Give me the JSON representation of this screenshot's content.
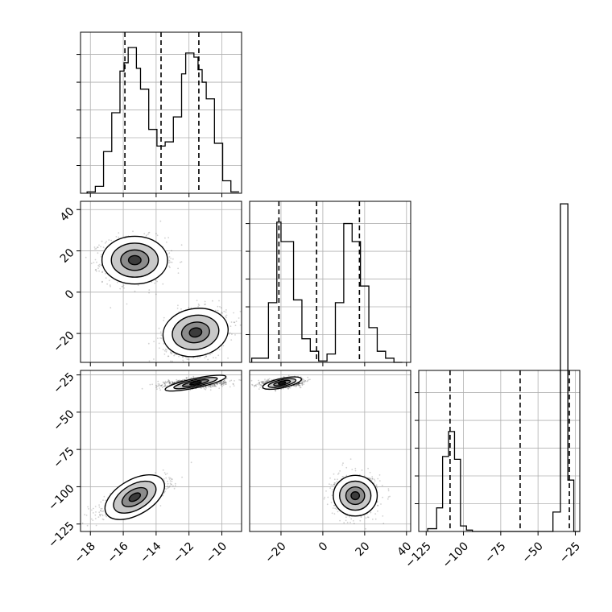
{
  "chart_data": {
    "type": "corner",
    "params": [
      {
        "index": 0,
        "xlim": [
          -18.6,
          -8.8
        ],
        "ticks": [
          -18,
          -16,
          -14,
          -12,
          -10
        ],
        "tick_labels": [
          "−18",
          "−16",
          "−14",
          "−12",
          "−10"
        ],
        "quantiles": [
          -15.9,
          -13.7,
          -11.4
        ],
        "hist_bins": [
          -18.2,
          -17.7,
          -17.2,
          -16.7,
          -16.2,
          -15.95,
          -15.7,
          -15.45,
          -15.2,
          -14.95,
          -14.45,
          -13.95,
          -13.45,
          -12.95,
          -12.45,
          -12.2,
          -11.95,
          -11.7,
          -11.45,
          -11.2,
          -10.95,
          -10.45,
          -9.95,
          -9.45
        ],
        "hist_counts": [
          5,
          25,
          150,
          290,
          440,
          470,
          525,
          525,
          450,
          375,
          230,
          170,
          185,
          275,
          430,
          505,
          505,
          490,
          445,
          400,
          340,
          180,
          45,
          5
        ]
      },
      {
        "index": 1,
        "xlim": [
          -35,
          42
        ],
        "ticks": [
          -20,
          0,
          20,
          40
        ],
        "tick_labels": [
          "−20",
          "0",
          "20",
          "40"
        ],
        "quantiles": [
          -21,
          -3,
          17.5
        ],
        "hist_bins": [
          -34,
          -30,
          -26,
          -22,
          -20,
          -18,
          -14,
          -10,
          -6,
          -2,
          2,
          6,
          10,
          14,
          18,
          22,
          26,
          30,
          34
        ],
        "hist_counts": [
          15,
          15,
          215,
          505,
          435,
          435,
          225,
          85,
          40,
          5,
          30,
          215,
          500,
          435,
          275,
          125,
          40,
          15,
          0
        ]
      },
      {
        "index": 2,
        "xlim": [
          -130,
          -22
        ],
        "ticks": [
          -125,
          -100,
          -75,
          -50,
          -25
        ],
        "tick_labels": [
          "−125",
          "−100",
          "−75",
          "−50",
          "−25"
        ],
        "quantiles": [
          -109,
          -62,
          -29
        ],
        "hist_bins": [
          -124,
          -118,
          -114,
          -110,
          -106,
          -102,
          -98,
          -94,
          -40,
          -35,
          -30,
          -26
        ],
        "hist_counts": [
          10,
          85,
          270,
          360,
          260,
          20,
          5,
          0,
          70,
          1180,
          185,
          0
        ]
      }
    ],
    "left_axis_ticks": {
      "row1": {
        "ticks": [
          40,
          20,
          0,
          -20
        ],
        "tick_labels": [
          "40",
          "20",
          "0",
          "−20"
        ],
        "ylim": [
          -34,
          44
        ]
      },
      "row2": {
        "ticks": [
          -25,
          -50,
          -75,
          -100,
          -125
        ],
        "tick_labels": [
          "−25",
          "−50",
          "−75",
          "−100",
          "−125"
        ],
        "ylim": [
          -130,
          -22
        ]
      }
    },
    "hist_ylim": [
      0,
      580
    ],
    "scatter_blobs": [
      {
        "panel": "p10",
        "cx": -15.3,
        "cy": 15.5,
        "sx": 0.95,
        "sy": 5.5,
        "rho": 0,
        "n": 1100
      },
      {
        "panel": "p10",
        "cx": -11.6,
        "cy": -19.5,
        "sx": 0.95,
        "sy": 5.5,
        "rho": 0.25,
        "n": 1100
      },
      {
        "panel": "p20",
        "cx": -15.3,
        "cy": -107,
        "sx": 0.95,
        "sy": 5.6,
        "rho": 0.75,
        "n": 1100
      },
      {
        "panel": "p20",
        "cx": -11.6,
        "cy": -30.5,
        "sx": 0.9,
        "sy": 1.5,
        "rho": 0.3,
        "n": 1100
      },
      {
        "panel": "p21",
        "cx": -19.5,
        "cy": -30.5,
        "sx": 4.5,
        "sy": 1.5,
        "rho": 0.3,
        "n": 1100
      },
      {
        "panel": "p21",
        "cx": 15.5,
        "cy": -106,
        "sx": 5,
        "sy": 6.5,
        "rho": 0,
        "n": 1100
      }
    ],
    "grid": true,
    "line_color": "#000000",
    "grid_color": "#b0b0b0"
  }
}
